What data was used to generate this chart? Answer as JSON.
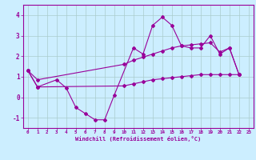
{
  "wc_x": [
    0,
    1,
    3,
    4,
    5,
    6,
    7,
    8,
    9,
    11,
    12,
    13,
    14,
    15,
    16,
    17,
    18,
    19,
    20,
    21,
    22
  ],
  "wc_y": [
    1.3,
    0.5,
    0.85,
    0.45,
    -0.5,
    -0.8,
    -1.1,
    -1.1,
    0.1,
    2.4,
    2.1,
    3.5,
    3.9,
    3.5,
    2.5,
    2.4,
    2.4,
    3.0,
    2.1,
    2.4,
    1.1
  ],
  "up_x": [
    0,
    1,
    10,
    11,
    12,
    13,
    14,
    15,
    16,
    17,
    18,
    19,
    20,
    21,
    22
  ],
  "up_y": [
    1.3,
    0.85,
    1.6,
    1.8,
    1.95,
    2.1,
    2.25,
    2.4,
    2.5,
    2.55,
    2.6,
    2.65,
    2.2,
    2.4,
    1.1
  ],
  "low_x": [
    0,
    1,
    10,
    11,
    12,
    13,
    14,
    15,
    16,
    17,
    18,
    19,
    20,
    21,
    22
  ],
  "low_y": [
    1.3,
    0.5,
    0.55,
    0.65,
    0.75,
    0.85,
    0.9,
    0.95,
    1.0,
    1.05,
    1.1,
    1.1,
    1.1,
    1.1,
    1.1
  ],
  "ylim": [
    -1.5,
    4.5
  ],
  "xlim": [
    -0.5,
    23.5
  ],
  "yticks": [
    -1,
    0,
    1,
    2,
    3,
    4
  ],
  "xticks": [
    0,
    1,
    2,
    3,
    4,
    5,
    6,
    7,
    8,
    9,
    10,
    11,
    12,
    13,
    14,
    15,
    16,
    17,
    18,
    19,
    20,
    21,
    22,
    23
  ],
  "xlabel": "Windchill (Refroidissement éolien,°C)",
  "line_color": "#990099",
  "bg_color": "#cceeff",
  "grid_color": "#aacccc"
}
